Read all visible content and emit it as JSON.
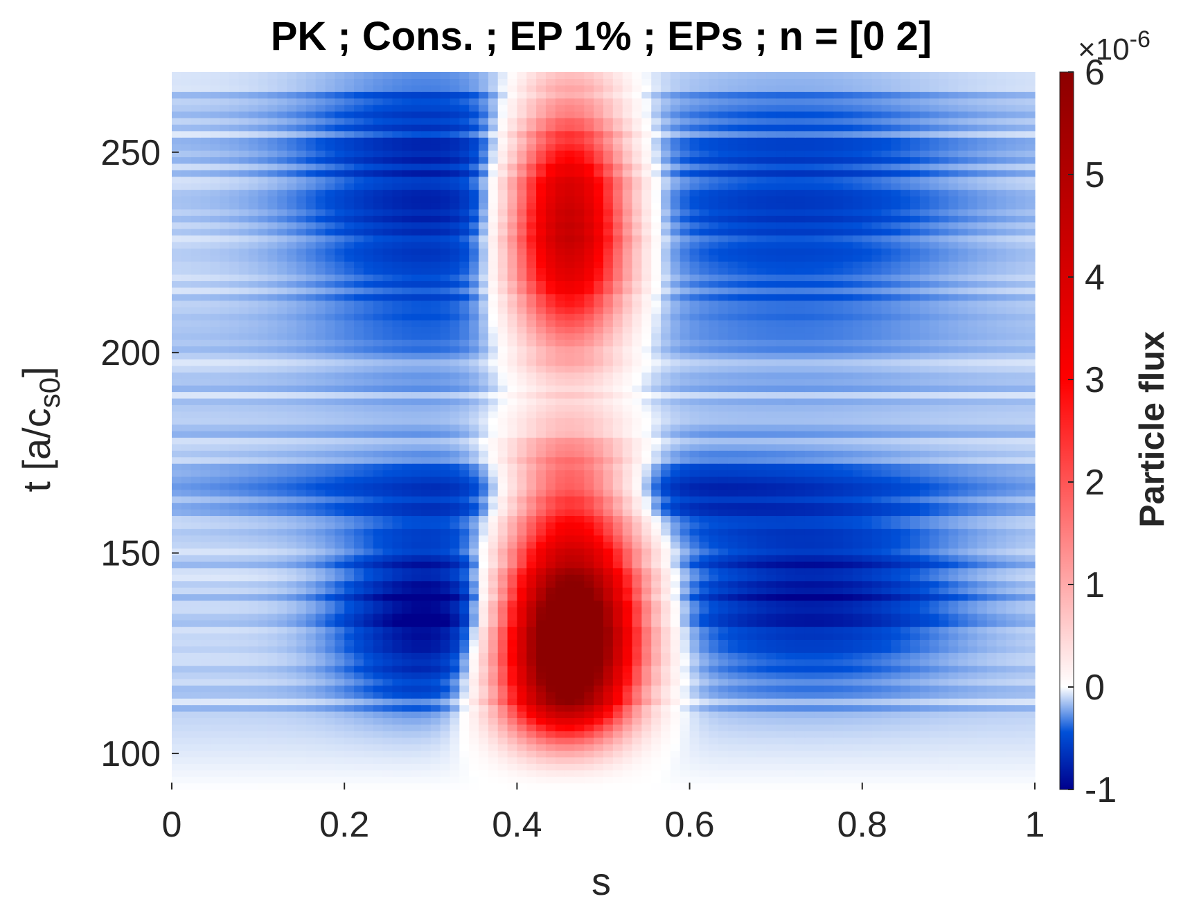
{
  "chart_data": {
    "type": "heatmap",
    "title": "PK ; Cons. ; EP 1% ; EPs ; n = [0 2]",
    "xlabel": "s",
    "ylabel_main": "t [a/c",
    "ylabel_sub": "s0",
    "ylabel_close": "]",
    "xlim": [
      0,
      1
    ],
    "ylim": [
      91,
      270
    ],
    "x_ticks": [
      0,
      0.2,
      0.4,
      0.6,
      0.8,
      1
    ],
    "x_tick_labels": [
      "0",
      "0.2",
      "0.4",
      "0.6",
      "0.8",
      "1"
    ],
    "y_ticks": [
      100,
      150,
      200,
      250
    ],
    "y_tick_labels": [
      "100",
      "150",
      "200",
      "250"
    ],
    "colorbar": {
      "label": "Particle flux",
      "clim": [
        -1,
        6
      ],
      "ticks": [
        -1,
        0,
        1,
        2,
        3,
        4,
        5,
        6
      ],
      "tick_labels": [
        "-1",
        "0",
        "1",
        "2",
        "3",
        "4",
        "5",
        "6"
      ],
      "exponent_prefix": "×10",
      "exponent_power": "-6",
      "colors": [
        "#00008c",
        "#0050d8",
        "#ffffff",
        "#ff0000",
        "#8c0000"
      ]
    },
    "features": [
      {
        "s": 0.465,
        "t": 135,
        "value": 6.0,
        "sigma_s": 0.05,
        "sigma_t": 16,
        "label": "red core"
      },
      {
        "s": 0.455,
        "t": 120,
        "value": 3.2,
        "sigma_s": 0.05,
        "sigma_t": 14,
        "label": "red onset"
      },
      {
        "s": 0.455,
        "t": 108,
        "value": 1.0,
        "sigma_s": 0.05,
        "sigma_t": 10,
        "label": "red tail"
      },
      {
        "s": 0.46,
        "t": 232,
        "value": 4.8,
        "sigma_s": 0.045,
        "sigma_t": 20,
        "label": "red upper"
      },
      {
        "s": 0.46,
        "t": 168,
        "value": 1.8,
        "sigma_s": 0.05,
        "sigma_t": 10,
        "label": "red middle"
      },
      {
        "s": 0.3,
        "t": 135,
        "value": -0.95,
        "sigma_s": 0.07,
        "sigma_t": 14,
        "label": "blue left"
      },
      {
        "s": 0.74,
        "t": 140,
        "value": -0.75,
        "sigma_s": 0.11,
        "sigma_t": 14,
        "label": "blue right"
      },
      {
        "s": 0.3,
        "t": 238,
        "value": -0.6,
        "sigma_s": 0.1,
        "sigma_t": 24,
        "label": "blue upper left"
      },
      {
        "s": 0.72,
        "t": 235,
        "value": -0.45,
        "sigma_s": 0.13,
        "sigma_t": 22,
        "label": "blue upper right"
      },
      {
        "s": 0.5,
        "t": 165,
        "value": -0.55,
        "sigma_s": 0.25,
        "sigma_t": 7,
        "label": "blue band"
      }
    ]
  }
}
